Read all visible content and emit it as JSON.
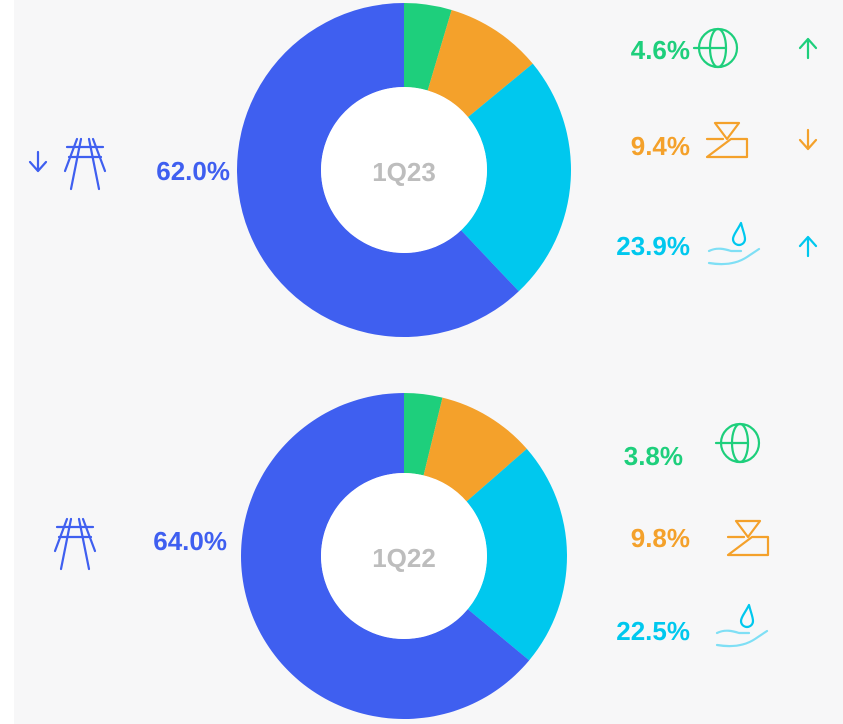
{
  "chart_data": [
    {
      "type": "pie",
      "donut": true,
      "title": "1Q23",
      "values": [
        4.6,
        9.4,
        23.9,
        62.0
      ],
      "value_labels": [
        "4.6%",
        "9.4%",
        "23.9%",
        "62.0%"
      ],
      "colors": [
        "#1ecf7c",
        "#f4a12b",
        "#00c8ee",
        "#3f5ff0"
      ]
    },
    {
      "type": "pie",
      "donut": true,
      "title": "1Q22",
      "values": [
        3.8,
        9.8,
        22.5,
        64.0
      ],
      "value_labels": [
        "3.8%",
        "9.8%",
        "22.5%",
        "64.0%"
      ],
      "colors": [
        "#1ecf7c",
        "#f4a12b",
        "#00c8ee",
        "#3f5ff0"
      ]
    }
  ]
}
